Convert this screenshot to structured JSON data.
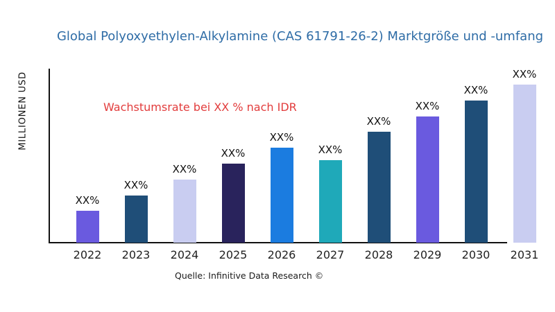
{
  "chart_data": {
    "type": "bar",
    "title": "Global Polyoxyethylen-Alkylamine (CAS 61791-26-2) Marktgröße und -umfang",
    "ylabel": "MILLIONEN USD",
    "xlabel": "",
    "annotation": "Wachstumsrate bei XX % nach IDR",
    "source": "Quelle: Infinitive Data Research ©",
    "categories": [
      "2022",
      "2023",
      "2024",
      "2025",
      "2026",
      "2027",
      "2028",
      "2029",
      "2030",
      "2031"
    ],
    "bar_labels": [
      "XX%",
      "XX%",
      "XX%",
      "XX%",
      "XX%",
      "XX%",
      "XX%",
      "XX%",
      "XX%",
      "XX%"
    ],
    "relative_heights": [
      0.2,
      0.3,
      0.4,
      0.5,
      0.6,
      0.52,
      0.7,
      0.8,
      0.9,
      1.0
    ],
    "bar_colors": [
      "#6A5ADF",
      "#1F4E78",
      "#C9CDF1",
      "#29235C",
      "#1B7CE0",
      "#1FA9B9",
      "#1F4E78",
      "#6A5ADF",
      "#1F4E78",
      "#C9CDF1"
    ],
    "y_ticks": "none",
    "grid": false,
    "legend": "none"
  },
  "colors": {
    "title": "#2E6CA6",
    "annotation": "#E23C3C",
    "axis": "#111111",
    "tick_text": "#222222"
  }
}
